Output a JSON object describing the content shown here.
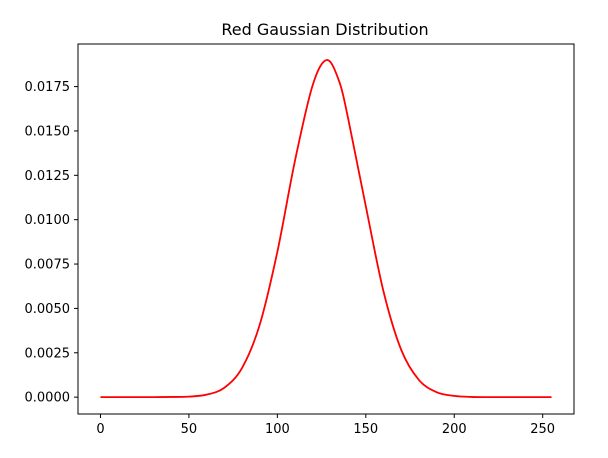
{
  "chart_data": {
    "type": "line",
    "title": "Red Gaussian Distribution",
    "xlabel": "",
    "ylabel": "",
    "xlim": [
      -12.7,
      267.7
    ],
    "ylim": [
      -0.00095,
      0.0199
    ],
    "x_ticks": [
      0,
      50,
      100,
      150,
      200,
      250
    ],
    "x_tick_labels": [
      "0",
      "50",
      "100",
      "150",
      "200",
      "250"
    ],
    "y_ticks": [
      0.0,
      0.0025,
      0.005,
      0.0075,
      0.01,
      0.0125,
      0.015,
      0.0175
    ],
    "y_tick_labels": [
      "0.0000",
      "0.0025",
      "0.0050",
      "0.0075",
      "0.0100",
      "0.0125",
      "0.0150",
      "0.0175"
    ],
    "grid": false,
    "legend": "none",
    "series": [
      {
        "color": "#ff0000",
        "x": [
          0,
          10,
          20,
          30,
          40,
          50,
          60,
          70,
          80,
          90,
          100,
          110,
          120,
          128,
          135,
          140,
          150,
          160,
          170,
          180,
          190,
          200,
          210,
          220,
          230,
          240,
          255
        ],
        "y": [
          0.0,
          0.0,
          0.0,
          0.0,
          1e-05,
          3e-05,
          0.00014,
          0.00053,
          0.00164,
          0.00407,
          0.00819,
          0.01334,
          0.01759,
          0.019,
          0.01778,
          0.01571,
          0.01076,
          0.00596,
          0.00267,
          0.00097,
          0.00028,
          7e-05,
          1e-05,
          0.0,
          0.0,
          0.0,
          0.0
        ]
      }
    ]
  }
}
